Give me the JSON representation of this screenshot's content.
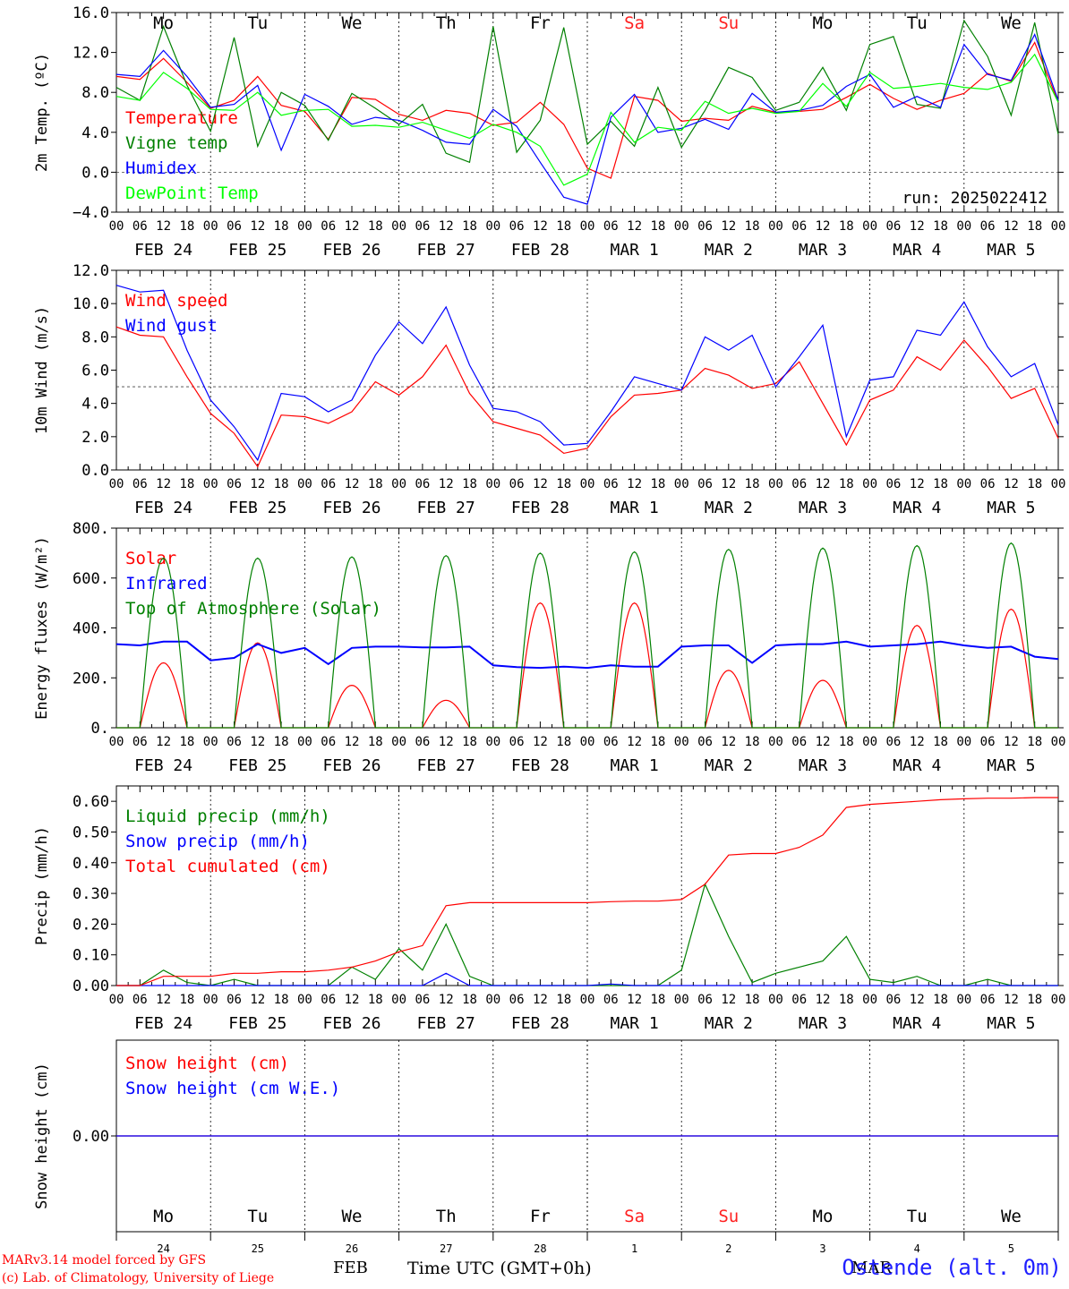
{
  "footer": {
    "model": "MARv3.14 model forced by GFS",
    "lab": "(c) Lab. of Climatology, University of Liege",
    "x_title": "Time UTC (GMT+0h)",
    "month_feb": "FEB",
    "month_mar": "MAR",
    "station": "Ostende (alt. 0m)"
  },
  "time_axis": {
    "hour_labels": [
      "00",
      "06",
      "12",
      "18"
    ],
    "date_labels": [
      "FEB 24",
      "FEB 25",
      "FEB 26",
      "FEB 27",
      "FEB 28",
      "MAR  1",
      "MAR  2",
      "MAR  3",
      "MAR  4",
      "MAR  5"
    ],
    "weekdays": [
      "Mo",
      "Tu",
      "We",
      "Th",
      "Fr",
      "Sa",
      "Su",
      "Mo",
      "Tu",
      "We"
    ],
    "weekend_color": "#ff2020",
    "weekend_index": [
      5,
      6
    ],
    "day_numbers": [
      "24",
      "25",
      "26",
      "27",
      "28",
      "1",
      "2",
      "3",
      "4",
      "5"
    ]
  },
  "chart_data": [
    {
      "id": "temp",
      "type": "line",
      "ylabel": "2m Temp. (ºC)",
      "ylim": [
        -4,
        16
      ],
      "yticks": [
        "-4.0",
        "0.0",
        "4.0",
        "8.0",
        "12.0",
        "16.0"
      ],
      "ref_line": 0,
      "annotation": "run: 2025022412",
      "x_hours": [
        0,
        6,
        12,
        18,
        24,
        30,
        36,
        42,
        48,
        54,
        60,
        66,
        72,
        78,
        84,
        90,
        96,
        102,
        108,
        114,
        120,
        126,
        132,
        138,
        144,
        150,
        156,
        162,
        168,
        174,
        180,
        186,
        192,
        198,
        204,
        210,
        216,
        222,
        228,
        234,
        240
      ],
      "series": [
        {
          "name": "Temperature",
          "color": "#ff0000",
          "values": [
            9.6,
            9.3,
            11.4,
            9.0,
            6.4,
            7.2,
            9.6,
            6.7,
            6.1,
            3.3,
            7.5,
            7.3,
            5.8,
            5.2,
            6.2,
            5.9,
            4.7,
            5.0,
            7.0,
            4.8,
            0.4,
            -0.6,
            7.6,
            7.2,
            5.1,
            5.4,
            5.2,
            6.6,
            6.0,
            6.1,
            6.3,
            7.5,
            8.8,
            7.4,
            6.3,
            7.2,
            7.9,
            9.9,
            9.1,
            13.0,
            7.0
          ]
        },
        {
          "name": "Vigne temp",
          "color": "#008000",
          "values": [
            8.5,
            7.2,
            14.6,
            8.7,
            4.1,
            13.5,
            2.6,
            8.0,
            6.7,
            3.2,
            7.9,
            6.4,
            4.8,
            6.8,
            1.9,
            1.0,
            14.6,
            2.0,
            5.2,
            14.5,
            2.8,
            5.1,
            2.6,
            8.5,
            2.5,
            6.2,
            10.5,
            9.5,
            6.2,
            7.0,
            10.5,
            6.2,
            12.8,
            13.6,
            6.8,
            6.4,
            15.2,
            11.6,
            5.7,
            15.0,
            3.8
          ]
        },
        {
          "name": "Humidex",
          "color": "#0000ff",
          "values": [
            9.8,
            9.6,
            12.2,
            9.6,
            6.5,
            6.8,
            8.7,
            2.2,
            7.8,
            6.6,
            4.8,
            5.5,
            5.2,
            4.2,
            3.0,
            2.8,
            6.3,
            4.6,
            1.0,
            -2.5,
            -3.2,
            5.5,
            7.8,
            4.0,
            4.4,
            5.3,
            4.3,
            7.9,
            6.0,
            6.2,
            6.7,
            8.6,
            9.8,
            6.5,
            7.6,
            6.5,
            12.8,
            9.8,
            9.2,
            13.8,
            7.2
          ]
        },
        {
          "name": "DewPoint Temp",
          "color": "#00ff00",
          "values": [
            7.6,
            7.2,
            10.0,
            8.4,
            6.3,
            6.2,
            8.0,
            5.7,
            6.2,
            6.3,
            4.6,
            4.7,
            4.5,
            5.0,
            4.2,
            3.4,
            4.8,
            4.0,
            2.6,
            -1.3,
            -0.2,
            6.0,
            3.0,
            4.5,
            4.2,
            7.1,
            5.9,
            6.4,
            5.9,
            6.1,
            8.9,
            6.6,
            10.0,
            8.4,
            8.6,
            8.9,
            8.5,
            8.3,
            9.0,
            11.8,
            7.0
          ]
        }
      ]
    },
    {
      "id": "wind",
      "type": "line",
      "ylabel": "10m Wind (m/s)",
      "ylim": [
        0,
        12
      ],
      "yticks": [
        "0.0",
        "2.0",
        "4.0",
        "6.0",
        "8.0",
        "10.0",
        "12.0"
      ],
      "ref_line": 5,
      "x_hours": [
        0,
        6,
        12,
        18,
        24,
        30,
        36,
        42,
        48,
        54,
        60,
        66,
        72,
        78,
        84,
        90,
        96,
        102,
        108,
        114,
        120,
        126,
        132,
        138,
        144,
        150,
        156,
        162,
        168,
        174,
        180,
        186,
        192,
        198,
        204,
        210,
        216,
        222,
        228,
        234,
        240
      ],
      "series": [
        {
          "name": "Wind speed",
          "color": "#ff0000",
          "values": [
            8.6,
            8.1,
            8.0,
            5.6,
            3.4,
            2.2,
            0.2,
            3.3,
            3.2,
            2.8,
            3.5,
            5.3,
            4.5,
            5.6,
            7.5,
            4.6,
            2.9,
            2.5,
            2.1,
            1.0,
            1.3,
            3.2,
            4.5,
            4.6,
            4.8,
            6.1,
            5.7,
            4.9,
            5.2,
            6.5,
            4.0,
            1.5,
            4.2,
            4.8,
            6.8,
            6.0,
            7.8,
            6.2,
            4.3,
            4.9,
            1.9
          ]
        },
        {
          "name": "Wind gust",
          "color": "#0000ff",
          "values": [
            11.1,
            10.7,
            10.8,
            7.2,
            4.2,
            2.6,
            0.6,
            4.6,
            4.4,
            3.5,
            4.2,
            6.9,
            8.9,
            7.6,
            9.8,
            6.3,
            3.7,
            3.5,
            2.9,
            1.5,
            1.6,
            3.5,
            5.6,
            5.2,
            4.8,
            8.0,
            7.2,
            8.1,
            5.0,
            6.8,
            8.7,
            2.0,
            5.4,
            5.6,
            8.4,
            8.1,
            10.1,
            7.4,
            5.6,
            6.4,
            2.7
          ]
        }
      ]
    },
    {
      "id": "energy",
      "type": "line",
      "ylabel": "Energy fluxes (W/m²)",
      "ylim": [
        0,
        800
      ],
      "yticks": [
        "0.",
        "200.",
        "400.",
        "600.",
        "800."
      ],
      "series": [
        {
          "name": "Solar",
          "color": "#ff0000",
          "peaks": [
            260,
            340,
            170,
            110,
            500,
            500,
            230,
            190,
            410,
            475
          ]
        },
        {
          "name": "Infrared",
          "color": "#0000ff",
          "x_hours": [
            0,
            6,
            12,
            18,
            24,
            30,
            36,
            42,
            48,
            54,
            60,
            66,
            72,
            78,
            84,
            90,
            96,
            102,
            108,
            114,
            120,
            126,
            132,
            138,
            144,
            150,
            156,
            162,
            168,
            174,
            180,
            186,
            192,
            198,
            204,
            210,
            216,
            222,
            228,
            234,
            240
          ],
          "values": [
            335,
            330,
            345,
            345,
            270,
            280,
            335,
            300,
            320,
            255,
            320,
            325,
            325,
            322,
            322,
            325,
            250,
            243,
            240,
            245,
            240,
            250,
            245,
            245,
            325,
            330,
            330,
            260,
            330,
            335,
            335,
            345,
            325,
            330,
            335,
            345,
            330,
            320,
            325,
            285,
            275
          ]
        },
        {
          "name": "Top of Atmosphere (Solar)",
          "color": "#008000",
          "peaks": [
            680,
            680,
            685,
            690,
            700,
            705,
            715,
            720,
            730,
            740
          ]
        }
      ]
    },
    {
      "id": "precip",
      "type": "line",
      "ylabel": "Precip (mm/h)",
      "ylim": [
        0,
        0.65
      ],
      "yticks": [
        "0.00",
        "0.10",
        "0.20",
        "0.30",
        "0.40",
        "0.50",
        "0.60"
      ],
      "x_hours": [
        0,
        6,
        12,
        18,
        24,
        30,
        36,
        42,
        48,
        54,
        60,
        66,
        72,
        78,
        84,
        90,
        96,
        102,
        108,
        114,
        120,
        126,
        132,
        138,
        144,
        150,
        156,
        162,
        168,
        174,
        180,
        186,
        192,
        198,
        204,
        210,
        216,
        222,
        228,
        234,
        240
      ],
      "series": [
        {
          "name": "Liquid precip (mm/h)",
          "color": "#008000",
          "values": [
            0,
            0,
            0.05,
            0.01,
            0,
            0.02,
            0,
            0,
            0,
            0,
            0.06,
            0.02,
            0.12,
            0.05,
            0.2,
            0.03,
            0,
            0,
            0,
            0,
            0,
            0,
            0,
            0,
            0.05,
            0.33,
            0.16,
            0.01,
            0.04,
            0.06,
            0.08,
            0.16,
            0.02,
            0.01,
            0.03,
            0,
            0,
            0.02,
            0,
            0,
            0
          ]
        },
        {
          "name": "Snow precip (mm/h)",
          "color": "#0000ff",
          "values": [
            0,
            0,
            0,
            0,
            0,
            0,
            0,
            0,
            0,
            0,
            0,
            0,
            0,
            0,
            0.04,
            0,
            0,
            0,
            0,
            0,
            0,
            0.005,
            0,
            0,
            0,
            0,
            0,
            0,
            0,
            0,
            0,
            0,
            0,
            0,
            0,
            0,
            0,
            0,
            0,
            0,
            0
          ]
        },
        {
          "name": "Total cumulated (cm)",
          "color": "#ff0000",
          "values": [
            0,
            0,
            0.03,
            0.03,
            0.03,
            0.04,
            0.04,
            0.045,
            0.045,
            0.05,
            0.06,
            0.08,
            0.11,
            0.13,
            0.26,
            0.27,
            0.27,
            0.27,
            0.27,
            0.27,
            0.27,
            0.273,
            0.275,
            0.275,
            0.28,
            0.33,
            0.425,
            0.43,
            0.43,
            0.45,
            0.49,
            0.58,
            0.59,
            0.595,
            0.6,
            0.605,
            0.608,
            0.61,
            0.61,
            0.612,
            0.612
          ]
        }
      ]
    },
    {
      "id": "snow",
      "type": "line",
      "ylabel": "Snow height (cm)",
      "yticks": [
        "0.00"
      ],
      "series": [
        {
          "name": "Snow height (cm)",
          "color": "#ff0000",
          "values": [
            0,
            0
          ]
        },
        {
          "name": "Snow height (cm W.E.)",
          "color": "#0000ff",
          "values": [
            0,
            0
          ]
        }
      ]
    }
  ]
}
